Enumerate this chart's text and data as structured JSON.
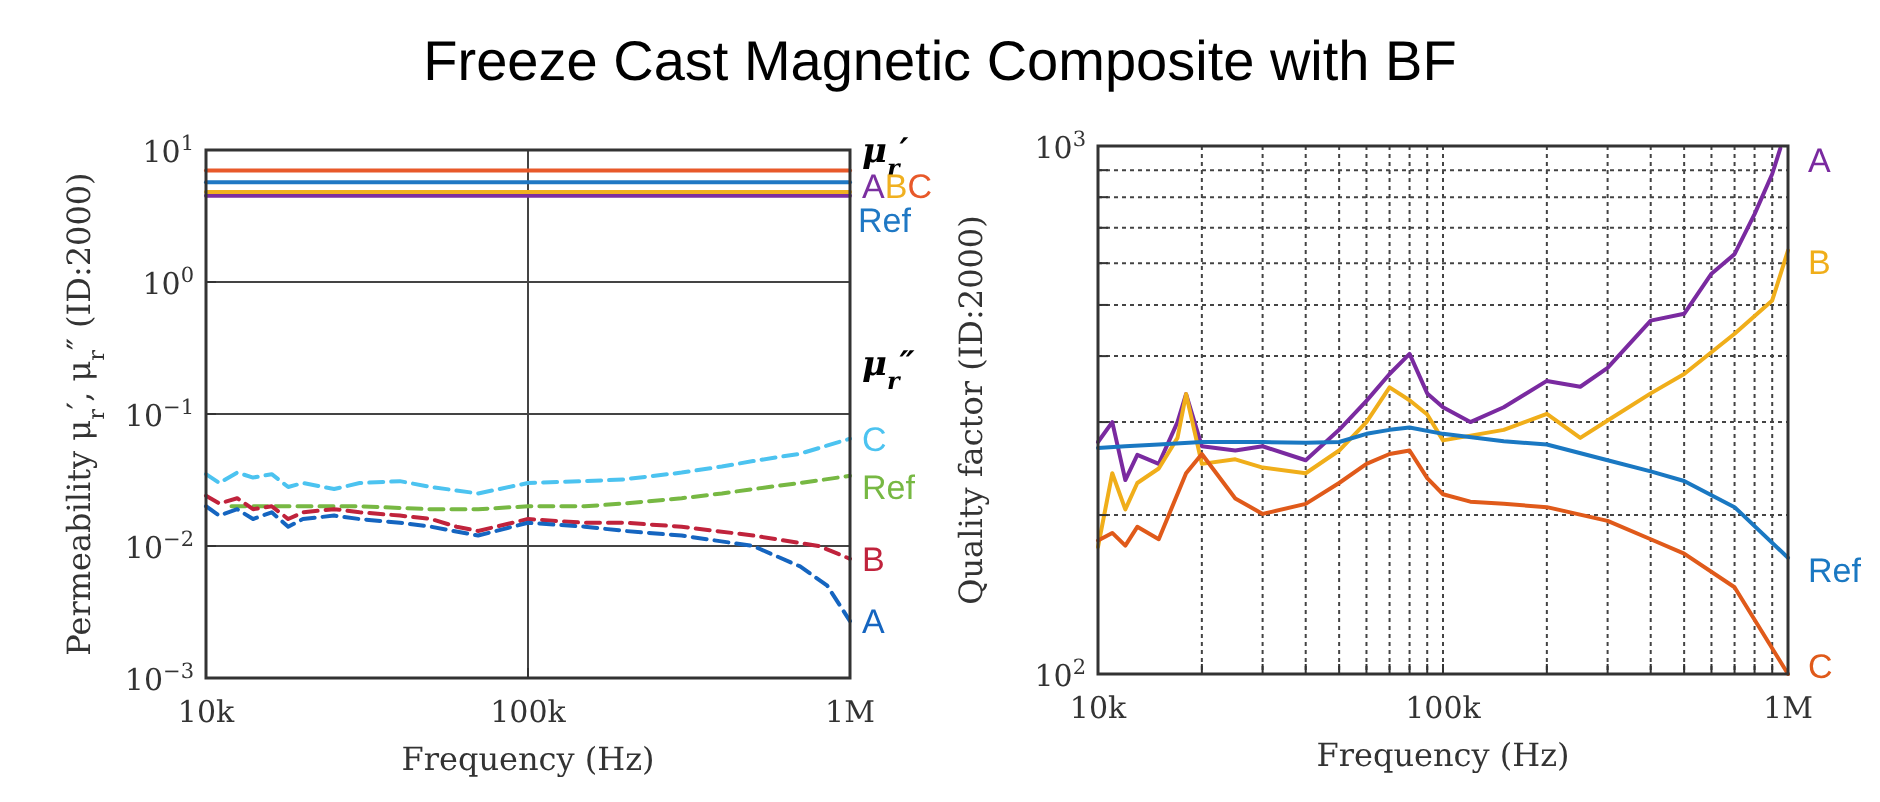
{
  "chart_data": [
    {
      "type": "line",
      "title": "Freeze Cast Magnetic Composite with BF",
      "xlabel": "Frequency (Hz)",
      "ylabel": "Permeability μ$_{r}$′, μ$_{r}$″ (ID:2000)",
      "log": "xy",
      "grid": true,
      "legend": false,
      "xlim": [
        10000,
        1000000
      ],
      "xticks": [
        {
          "value": 10000,
          "label": "10k"
        },
        {
          "value": 100000,
          "label": "100k"
        },
        {
          "value": 1000000,
          "label": "1M"
        }
      ],
      "ylim": [
        0.001,
        10
      ],
      "yticks": [
        {
          "value": 0.001,
          "label": "10$^{−3}$"
        },
        {
          "value": 0.01,
          "label": "10$^{−2}$"
        },
        {
          "value": 0.1,
          "label": "10$^{−1}$"
        },
        {
          "value": 1,
          "label": "10$^{0}$"
        },
        {
          "value": 10,
          "label": "10$^{1}$"
        }
      ],
      "annotations": [
        "μ$_{r}$′",
        "μ$_{r}$″"
      ],
      "series": [
        {
          "name": "A",
          "color": "#7b2fa0",
          "line_style": "solid",
          "x": [
            10000,
            1000000
          ],
          "values": [
            4.5,
            4.5
          ]
        },
        {
          "name": "B",
          "color": "#f0b020",
          "line_style": "solid",
          "x": [
            10000,
            1000000
          ],
          "values": [
            4.8,
            4.8
          ]
        },
        {
          "name": "C",
          "color": "#e8592a",
          "line_style": "solid",
          "x": [
            10000,
            1000000
          ],
          "values": [
            7.0,
            7.0
          ]
        },
        {
          "name": "Ref",
          "color": "#1f78c4",
          "line_style": "solid",
          "x": [
            10000,
            1000000
          ],
          "values": [
            5.7,
            5.7
          ]
        },
        {
          "name": "C",
          "color": "#4cc3f0",
          "line_style": "dashed",
          "x": [
            10000,
            11000,
            12500,
            14000,
            16000,
            18000,
            20000,
            25000,
            30000,
            40000,
            50000,
            70000,
            100000,
            150000,
            200000,
            300000,
            400000,
            500000,
            700000,
            1000000
          ],
          "values": [
            0.035,
            0.03,
            0.036,
            0.033,
            0.035,
            0.028,
            0.03,
            0.027,
            0.03,
            0.031,
            0.028,
            0.025,
            0.03,
            0.031,
            0.032,
            0.036,
            0.04,
            0.044,
            0.05,
            0.065
          ]
        },
        {
          "name": "Ref",
          "color": "#77b843",
          "line_style": "dashed",
          "x": [
            12000,
            20000,
            30000,
            50000,
            70000,
            100000,
            150000,
            200000,
            300000,
            400000,
            500000,
            700000,
            1000000
          ],
          "values": [
            0.02,
            0.02,
            0.02,
            0.019,
            0.019,
            0.02,
            0.02,
            0.021,
            0.023,
            0.025,
            0.027,
            0.03,
            0.034
          ]
        },
        {
          "name": "B",
          "color": "#c0233c",
          "line_style": "dashed",
          "x": [
            10000,
            11000,
            12500,
            14000,
            16000,
            18000,
            20000,
            25000,
            30000,
            40000,
            50000,
            60000,
            70000,
            100000,
            150000,
            200000,
            300000,
            500000,
            800000,
            1000000
          ],
          "values": [
            0.024,
            0.021,
            0.023,
            0.019,
            0.02,
            0.016,
            0.018,
            0.019,
            0.018,
            0.017,
            0.016,
            0.014,
            0.013,
            0.016,
            0.015,
            0.015,
            0.014,
            0.012,
            0.01,
            0.008
          ]
        },
        {
          "name": "A",
          "color": "#1565c0",
          "line_style": "dashed",
          "x": [
            10000,
            11000,
            12500,
            14000,
            16000,
            18000,
            20000,
            25000,
            30000,
            40000,
            50000,
            70000,
            100000,
            150000,
            200000,
            300000,
            500000,
            700000,
            850000,
            1000000
          ],
          "values": [
            0.02,
            0.017,
            0.019,
            0.016,
            0.018,
            0.014,
            0.016,
            0.017,
            0.016,
            0.015,
            0.014,
            0.012,
            0.015,
            0.014,
            0.013,
            0.012,
            0.01,
            0.007,
            0.005,
            0.0027
          ]
        }
      ]
    },
    {
      "type": "line",
      "xlabel": "Frequency (Hz)",
      "ylabel": "Quality factor (ID:2000)",
      "log": "xy",
      "grid": true,
      "legend": false,
      "xlim": [
        10000,
        1000000
      ],
      "xticks": [
        {
          "value": 10000,
          "label": "10k"
        },
        {
          "value": 20000,
          "label": null
        },
        {
          "value": 30000,
          "label": null
        },
        {
          "value": 40000,
          "label": null
        },
        {
          "value": 50000,
          "label": null
        },
        {
          "value": 60000,
          "label": null
        },
        {
          "value": 70000,
          "label": null
        },
        {
          "value": 80000,
          "label": null
        },
        {
          "value": 90000,
          "label": null
        },
        {
          "value": 100000,
          "label": "100k"
        },
        {
          "value": 200000,
          "label": null
        },
        {
          "value": 300000,
          "label": null
        },
        {
          "value": 400000,
          "label": null
        },
        {
          "value": 500000,
          "label": null
        },
        {
          "value": 600000,
          "label": null
        },
        {
          "value": 700000,
          "label": null
        },
        {
          "value": 800000,
          "label": null
        },
        {
          "value": 900000,
          "label": null
        },
        {
          "value": 1000000,
          "label": "1M"
        }
      ],
      "ylim": [
        100,
        1000
      ],
      "yticks": [
        {
          "value": 100,
          "label": "10$^{2}$"
        },
        {
          "value": 200,
          "label": null
        },
        {
          "value": 300,
          "label": null
        },
        {
          "value": 400,
          "label": null
        },
        {
          "value": 500,
          "label": null
        },
        {
          "value": 600,
          "label": null
        },
        {
          "value": 700,
          "label": null
        },
        {
          "value": 800,
          "label": null
        },
        {
          "value": 900,
          "label": null
        },
        {
          "value": 1000,
          "label": "10$^{3}$"
        }
      ],
      "series": [
        {
          "name": "A",
          "color": "#7a2aa0",
          "x": [
            10000,
            11000,
            12000,
            13000,
            15000,
            17000,
            18000,
            20000,
            25000,
            30000,
            40000,
            50000,
            60000,
            70000,
            80000,
            90000,
            100000,
            120000,
            150000,
            200000,
            250000,
            300000,
            400000,
            500000,
            600000,
            700000,
            800000,
            900000,
            950000
          ],
          "values": [
            275,
            300,
            233,
            260,
            250,
            300,
            339,
            270,
            265,
            270,
            254,
            290,
            329,
            370,
            404,
            340,
            320,
            300,
            320,
            359,
            350,
            380,
            467,
            481,
            573,
            624,
            743,
            885,
            990
          ]
        },
        {
          "name": "B",
          "color": "#f0ae1a",
          "x": [
            10000,
            11000,
            12000,
            13000,
            15000,
            17000,
            18000,
            20000,
            25000,
            30000,
            40000,
            50000,
            60000,
            70000,
            80000,
            90000,
            100000,
            150000,
            200000,
            250000,
            300000,
            400000,
            500000,
            700000,
            900000,
            1000000
          ],
          "values": [
            174,
            240,
            205,
            230,
            245,
            280,
            339,
            250,
            255,
            246,
            240,
            265,
            300,
            349,
            330,
            310,
            277,
            290,
            311,
            280,
            302,
            340,
            370,
            441,
            510,
            634
          ]
        },
        {
          "name": "Ref",
          "color": "#1a78c2",
          "x": [
            10000,
            12000,
            15000,
            20000,
            30000,
            40000,
            50000,
            60000,
            70000,
            80000,
            100000,
            150000,
            200000,
            300000,
            400000,
            500000,
            700000,
            1000000
          ],
          "values": [
            268,
            270,
            272,
            275,
            275,
            274,
            275,
            285,
            290,
            293,
            285,
            276,
            272,
            254,
            242,
            232,
            207,
            166
          ]
        },
        {
          "name": "C",
          "color": "#e05a1a",
          "x": [
            10000,
            11000,
            12000,
            13000,
            15000,
            18000,
            20000,
            25000,
            30000,
            40000,
            50000,
            60000,
            70000,
            80000,
            90000,
            100000,
            120000,
            150000,
            200000,
            300000,
            400000,
            500000,
            700000,
            1000000
          ],
          "values": [
            179,
            185,
            175,
            190,
            180,
            240,
            261,
            215,
            201,
            210,
            230,
            250,
            261,
            265,
            235,
            219,
            212,
            210,
            207,
            195,
            180,
            169,
            146,
            100
          ]
        }
      ]
    }
  ]
}
